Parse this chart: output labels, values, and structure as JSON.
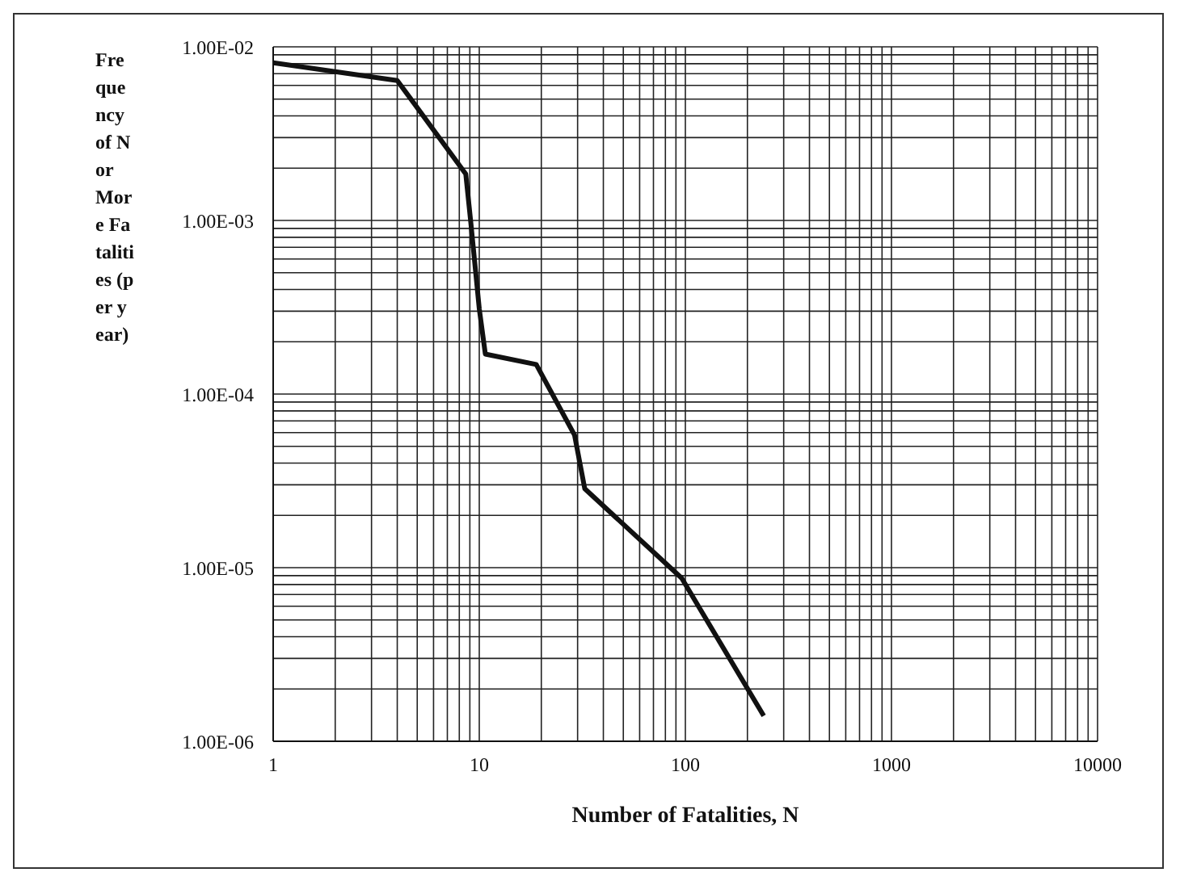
{
  "chart_data": {
    "type": "line",
    "xlabel": "Number of Fatalities, N",
    "ylabel": "Frequency of N or More Fatalities (per year)",
    "log": "xy",
    "grid": true,
    "legend": false,
    "x": [
      1,
      4,
      8.6,
      9.1,
      10,
      10.7,
      18.9,
      29,
      32.5,
      96,
      240
    ],
    "series": [
      {
        "color": "#111111",
        "values": [
          0.0081,
          0.0064,
          0.00185,
          0.00097,
          0.00031,
          0.00017,
          0.000148,
          5.8e-05,
          2.85e-05,
          8.7e-06,
          1.4e-06
        ]
      }
    ],
    "xlim": [
      1,
      10000
    ],
    "ylim": [
      1e-06,
      0.01
    ],
    "xticks": [
      1,
      {
        "value": 2,
        "label": null
      },
      {
        "value": 3,
        "label": null
      },
      {
        "value": 4,
        "label": null
      },
      {
        "value": 5,
        "label": null
      },
      {
        "value": 6,
        "label": null
      },
      {
        "value": 7,
        "label": null
      },
      {
        "value": 8,
        "label": null
      },
      {
        "value": 9,
        "label": null
      },
      10,
      {
        "value": 20,
        "label": null
      },
      {
        "value": 30,
        "label": null
      },
      {
        "value": 40,
        "label": null
      },
      {
        "value": 50,
        "label": null
      },
      {
        "value": 60,
        "label": null
      },
      {
        "value": 70,
        "label": null
      },
      {
        "value": 80,
        "label": null
      },
      {
        "value": 90,
        "label": null
      },
      100,
      {
        "value": 200,
        "label": null
      },
      {
        "value": 300,
        "label": null
      },
      {
        "value": 400,
        "label": null
      },
      {
        "value": 500,
        "label": null
      },
      {
        "value": 600,
        "label": null
      },
      {
        "value": 700,
        "label": null
      },
      {
        "value": 800,
        "label": null
      },
      {
        "value": 900,
        "label": null
      },
      1000,
      {
        "value": 2000,
        "label": null
      },
      {
        "value": 3000,
        "label": null
      },
      {
        "value": 4000,
        "label": null
      },
      {
        "value": 5000,
        "label": null
      },
      {
        "value": 6000,
        "label": null
      },
      {
        "value": 7000,
        "label": null
      },
      {
        "value": 8000,
        "label": null
      },
      {
        "value": 9000,
        "label": null
      },
      10000
    ],
    "yticks": [
      {
        "value": 1e-06,
        "label": "1.00E-06"
      },
      {
        "value": 2e-06,
        "label": null
      },
      {
        "value": 3e-06,
        "label": null
      },
      {
        "value": 4e-06,
        "label": null
      },
      {
        "value": 5e-06,
        "label": null
      },
      {
        "value": 6e-06,
        "label": null
      },
      {
        "value": 7e-06,
        "label": null
      },
      {
        "value": 8e-06,
        "label": null
      },
      {
        "value": 9e-06,
        "label": null
      },
      {
        "value": 1e-05,
        "label": "1.00E-05"
      },
      {
        "value": 2e-05,
        "label": null
      },
      {
        "value": 3e-05,
        "label": null
      },
      {
        "value": 4e-05,
        "label": null
      },
      {
        "value": 5e-05,
        "label": null
      },
      {
        "value": 6e-05,
        "label": null
      },
      {
        "value": 7e-05,
        "label": null
      },
      {
        "value": 8e-05,
        "label": null
      },
      {
        "value": 9e-05,
        "label": null
      },
      {
        "value": 0.0001,
        "label": "1.00E-04"
      },
      {
        "value": 0.0002,
        "label": null
      },
      {
        "value": 0.0003,
        "label": null
      },
      {
        "value": 0.0004,
        "label": null
      },
      {
        "value": 0.0005,
        "label": null
      },
      {
        "value": 0.0006,
        "label": null
      },
      {
        "value": 0.0007,
        "label": null
      },
      {
        "value": 0.0008,
        "label": null
      },
      {
        "value": 0.0009,
        "label": null
      },
      {
        "value": 0.001,
        "label": "1.00E-03"
      },
      {
        "value": 0.002,
        "label": null
      },
      {
        "value": 0.003,
        "label": null
      },
      {
        "value": 0.004,
        "label": null
      },
      {
        "value": 0.005,
        "label": null
      },
      {
        "value": 0.006,
        "label": null
      },
      {
        "value": 0.007,
        "label": null
      },
      {
        "value": 0.008,
        "label": null
      },
      {
        "value": 0.009,
        "label": null
      },
      {
        "value": 0.01,
        "label": "1.00E-02"
      }
    ]
  }
}
